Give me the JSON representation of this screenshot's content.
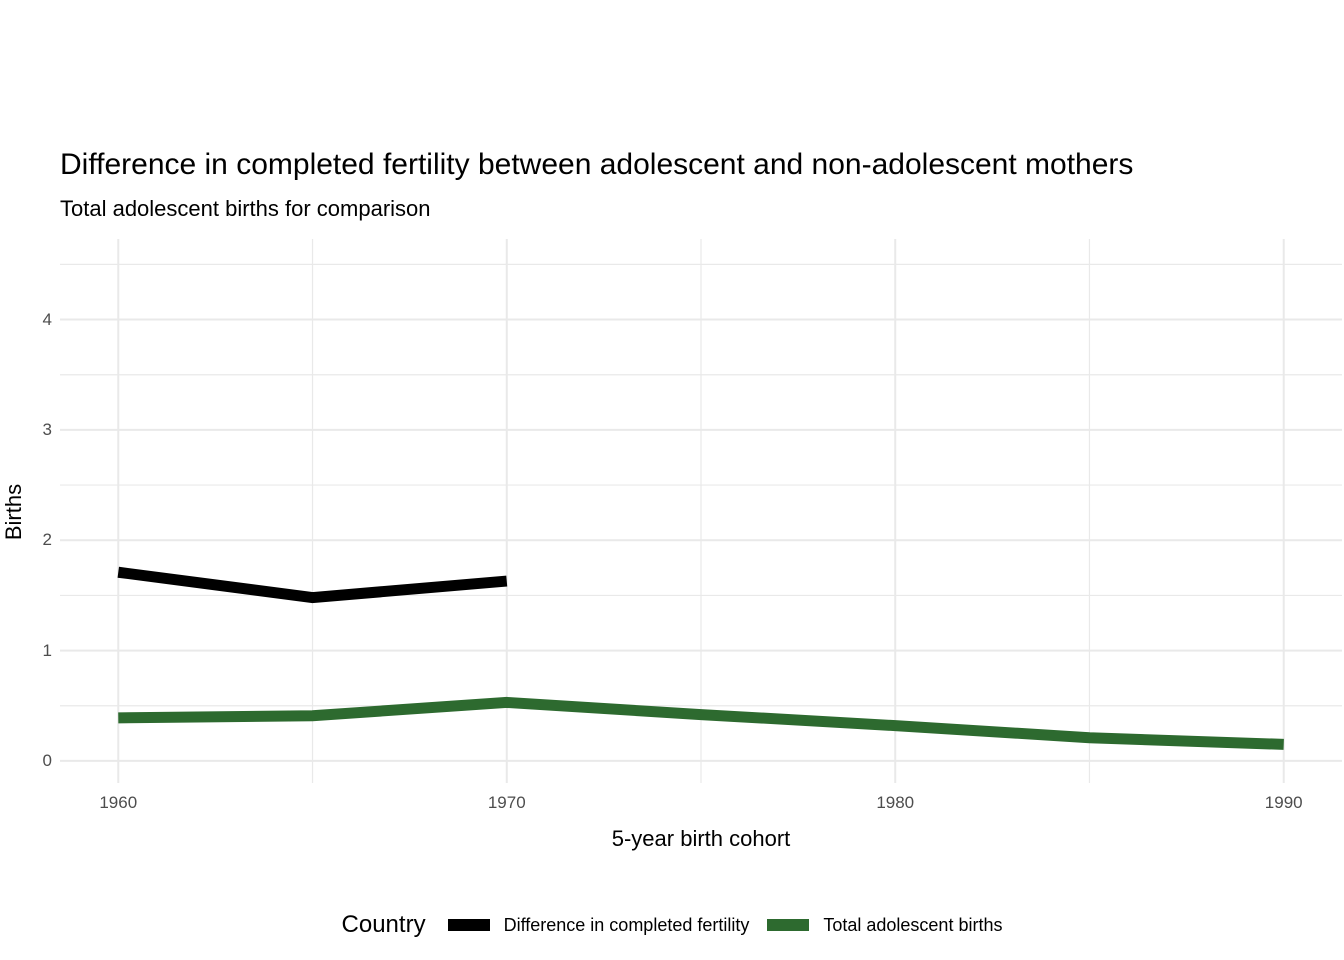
{
  "chart_data": {
    "type": "line",
    "title": "Difference in completed fertility between adolescent and non-adolescent mothers",
    "subtitle": "Total adolescent births for comparison",
    "xlabel": "5-year birth cohort",
    "ylabel": "Births",
    "legend_title": "Country",
    "x_domain": [
      1958.5,
      1991.5
    ],
    "y_domain": [
      -0.2,
      4.73
    ],
    "x_ticks": [
      1960,
      1970,
      1980,
      1990
    ],
    "x_minor_ticks": [
      1965,
      1975,
      1985
    ],
    "y_ticks": [
      0,
      1,
      2,
      3,
      4
    ],
    "y_minor_ticks": [
      0.5,
      1.5,
      2.5,
      3.5,
      4.5
    ],
    "grid_on": true,
    "grid_color": "#e9e9e9",
    "tick_label_color": "#4d4d4d",
    "legend_position": "bottom",
    "series": [
      {
        "name": "Difference in completed fertility",
        "color": "#000000",
        "x": [
          1960,
          1965,
          1970
        ],
        "values": [
          1.71,
          1.48,
          1.63
        ]
      },
      {
        "name": "Total adolescent births",
        "color": "#2d6a2f",
        "x": [
          1960,
          1965,
          1970,
          1975,
          1980,
          1985,
          1990
        ],
        "values": [
          0.39,
          0.41,
          0.53,
          0.42,
          0.32,
          0.21,
          0.15
        ]
      }
    ]
  }
}
